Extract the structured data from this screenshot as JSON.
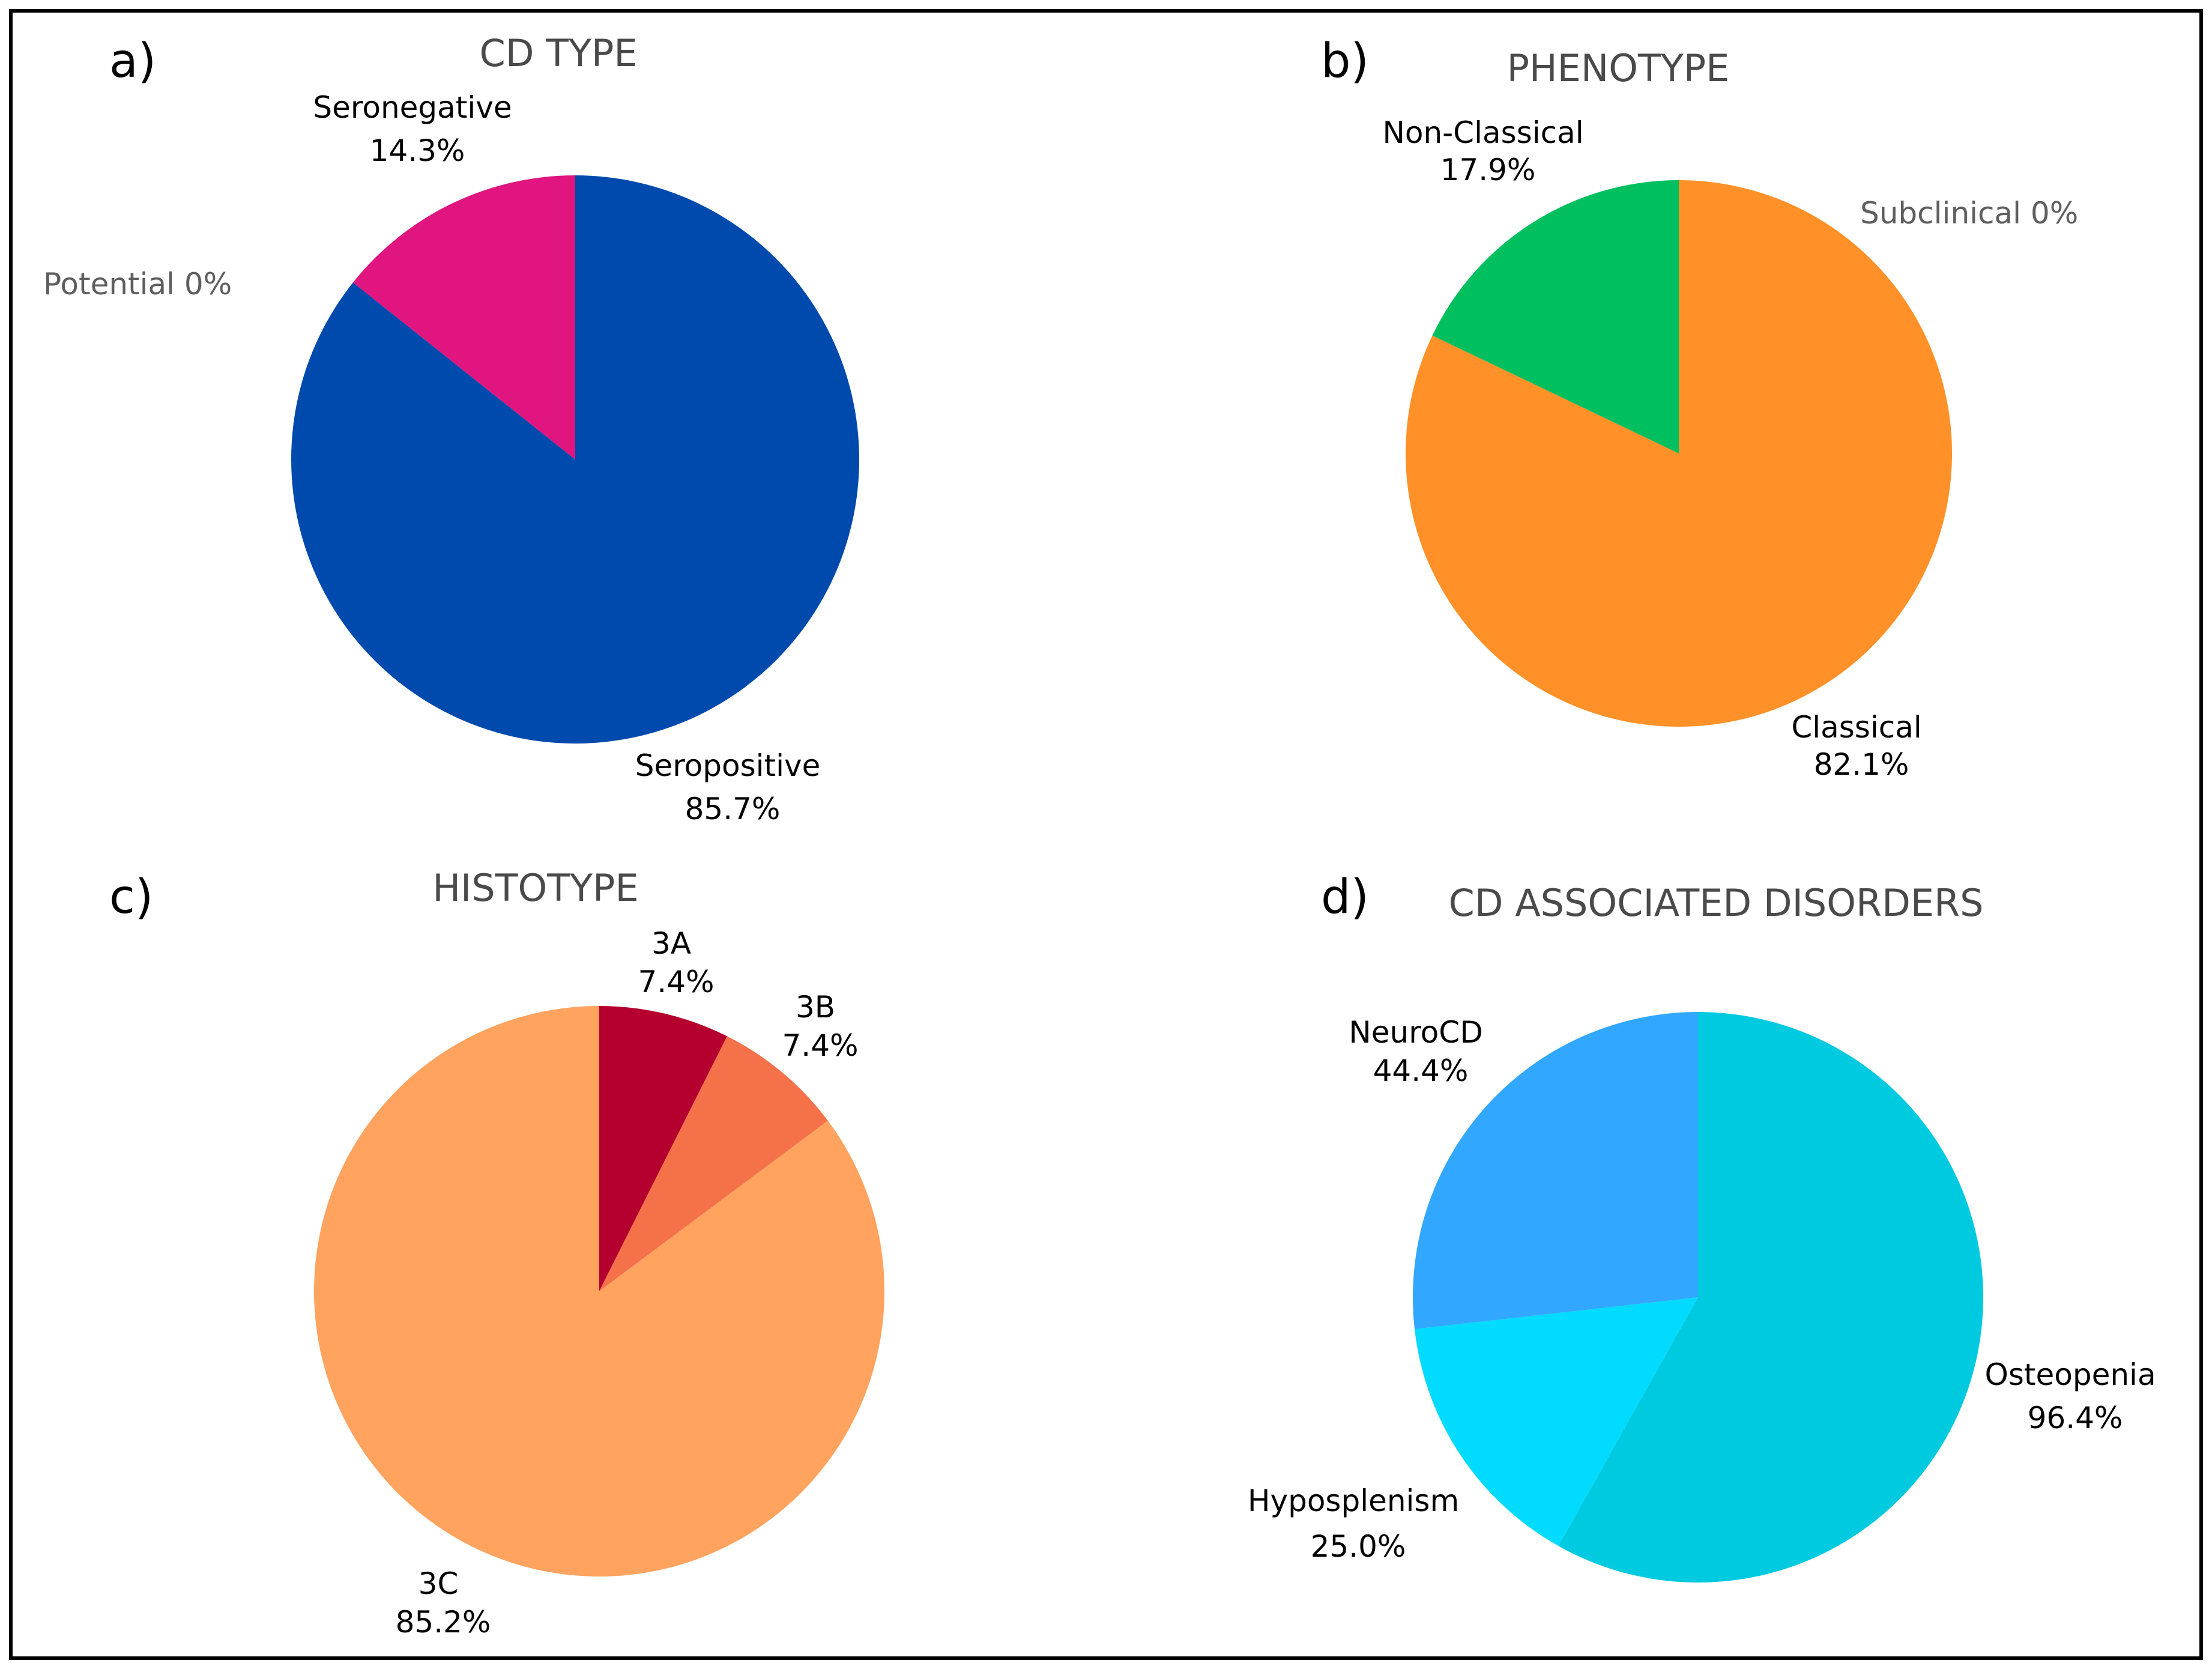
{
  "chart_data": [
    {
      "type": "pie",
      "panel_label": "a)",
      "title": "CD TYPE",
      "slices": [
        {
          "name": "Seropositive",
          "value_label": "85.7%",
          "value": 85.7,
          "color": "#004AAD",
          "label_color": "#000000"
        },
        {
          "name": "Potential 0%",
          "value_label": "",
          "value": 0,
          "color": "#5E5E5E",
          "label_color": "#5E5E5E"
        },
        {
          "name": "Seronegative",
          "value_label": "14.3%",
          "value": 14.3,
          "color": "#E0157F",
          "label_color": "#000000"
        }
      ]
    },
    {
      "type": "pie",
      "panel_label": "b)",
      "title": "PHENOTYPE",
      "slices": [
        {
          "name": "Subclinical 0%",
          "value_label": "",
          "value": 0,
          "color": "#5E5E5E",
          "label_color": "#5E5E5E"
        },
        {
          "name": "Classical",
          "value_label": "82.1%",
          "value": 82.1,
          "color": "#FF9128",
          "label_color": "#000000"
        },
        {
          "name": "Non-Classical",
          "value_label": "17.9%",
          "value": 17.9,
          "color": "#00BF5E",
          "label_color": "#000000"
        }
      ]
    },
    {
      "type": "pie",
      "panel_label": "c)",
      "title": "HISTOTYPE",
      "slices": [
        {
          "name": "3A",
          "value_label": "7.4%",
          "value": 7.4,
          "color": "#B5002F",
          "label_color": "#000000"
        },
        {
          "name": "3B",
          "value_label": "7.4%",
          "value": 7.4,
          "color": "#F4714A",
          "label_color": "#000000"
        },
        {
          "name": "3C",
          "value_label": "85.2%",
          "value": 85.2,
          "color": "#FFA35F",
          "label_color": "#000000"
        }
      ]
    },
    {
      "type": "pie",
      "panel_label": "d)",
      "title": "CD ASSOCIATED DISORDERS",
      "slices": [
        {
          "name": "Osteopenia",
          "value_label": "96.4%",
          "value": 96.4,
          "color": "#00CADF",
          "label_color": "#000000"
        },
        {
          "name": "Hyposplenism",
          "value_label": "25.0%",
          "value": 25.0,
          "color": "#00DBFF",
          "label_color": "#000000"
        },
        {
          "name": "NeuroCD",
          "value_label": "44.4%",
          "value": 44.4,
          "color": "#31A7FF",
          "label_color": "#000000"
        }
      ]
    }
  ]
}
